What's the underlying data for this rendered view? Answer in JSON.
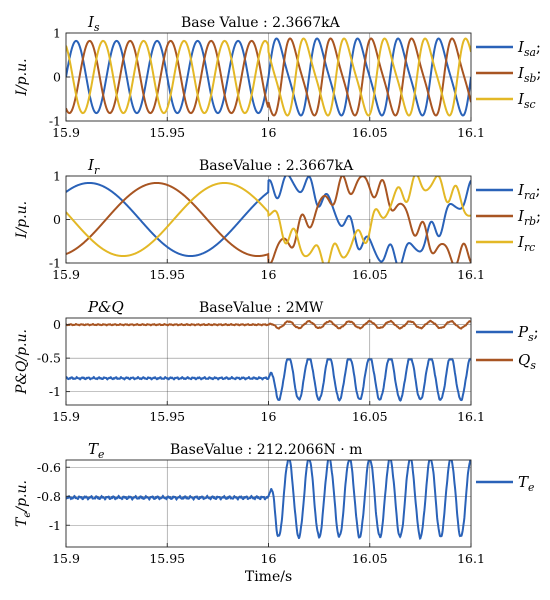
{
  "chart_data": [
    {
      "type": "line",
      "title": "I_s",
      "base_label": "Base Value :",
      "base_value": "2.3667kA",
      "ylabel": "I/p.u.",
      "xlim": [
        15.9,
        16.1
      ],
      "ylim": [
        -1,
        1
      ],
      "xticks": [
        "15.9",
        "15.95",
        "16",
        "16.05",
        "16.1"
      ],
      "yticks": [
        "-1",
        "0",
        "1"
      ],
      "grid": true,
      "legend_position": "right",
      "series": [
        {
          "name": "I_sa;",
          "color": "#2a62b8",
          "amp": 0.82,
          "freq": 50,
          "phase": 0.0,
          "dist_amp": 0.16,
          "dist_freq": 100
        },
        {
          "name": "I_sb;",
          "color": "#a85522",
          "amp": 0.82,
          "freq": 50,
          "phase": -2.094,
          "dist_amp": 0.16,
          "dist_freq": 100
        },
        {
          "name": "I_sc",
          "color": "#e3b826",
          "amp": 0.82,
          "freq": 50,
          "phase": 2.094,
          "dist_amp": 0.16,
          "dist_freq": 100
        }
      ]
    },
    {
      "type": "line",
      "title": "I_r",
      "base_label": "BaseValue :",
      "base_value": "2.3667kA",
      "ylabel": "I/p.u.",
      "xlim": [
        15.9,
        16.1
      ],
      "ylim": [
        -1,
        1
      ],
      "xticks": [
        "15.9",
        "15.95",
        "16",
        "16.05",
        "16.1"
      ],
      "yticks": [
        "-1",
        "0",
        "1"
      ],
      "grid": true,
      "legend_position": "right",
      "series": [
        {
          "name": "I_ra;",
          "color": "#2a62b8",
          "amp": 0.84,
          "freq": 10,
          "phase": 0.85,
          "dist_amp": 0.22,
          "dist_freq": 100
        },
        {
          "name": "I_rb;",
          "color": "#a85522",
          "amp": 0.84,
          "freq": 10,
          "phase": -1.24,
          "dist_amp": 0.22,
          "dist_freq": 100
        },
        {
          "name": "I_rc",
          "color": "#e3b826",
          "amp": 0.84,
          "freq": 10,
          "phase": 2.94,
          "dist_amp": 0.22,
          "dist_freq": 100
        }
      ]
    },
    {
      "type": "line",
      "title": "P&Q",
      "base_label": "BaseValue :",
      "base_value": "2MW",
      "ylabel": "P&Q/p.u.",
      "xlim": [
        15.9,
        16.1
      ],
      "ylim": [
        -1.2,
        0.1
      ],
      "xticks": [
        "15.9",
        "15.95",
        "16",
        "16.05",
        "16.1"
      ],
      "yticks": [
        "-1",
        "-0.5",
        "0"
      ],
      "grid": true,
      "legend_position": "right",
      "series": [
        {
          "name": "P_s;",
          "color": "#2a62b8",
          "base": -0.8,
          "noise": 0.018,
          "osc_amp": 0.32,
          "osc_freq": 100
        },
        {
          "name": "Q_s",
          "color": "#a85522",
          "base": 0.0,
          "noise": 0.01,
          "osc_amp": 0.05,
          "osc_freq": 100
        }
      ]
    },
    {
      "type": "line",
      "title": "T_e",
      "base_label": "BaseValue :",
      "base_value": "212.2066N · m",
      "ylabel": "T_e/p.u.",
      "xlabel": "Time/s",
      "xlim": [
        15.9,
        16.1
      ],
      "ylim": [
        -1.15,
        -0.55
      ],
      "xticks": [
        "15.9",
        "15.95",
        "16",
        "16.05",
        "16.1"
      ],
      "yticks": [
        "-1",
        "-0.8",
        "-0.6"
      ],
      "grid": true,
      "legend_position": "right",
      "series": [
        {
          "name": "T_e",
          "color": "#2a62b8",
          "base": -0.81,
          "noise": 0.012,
          "osc_amp": 0.27,
          "osc_freq": 100
        }
      ]
    }
  ]
}
